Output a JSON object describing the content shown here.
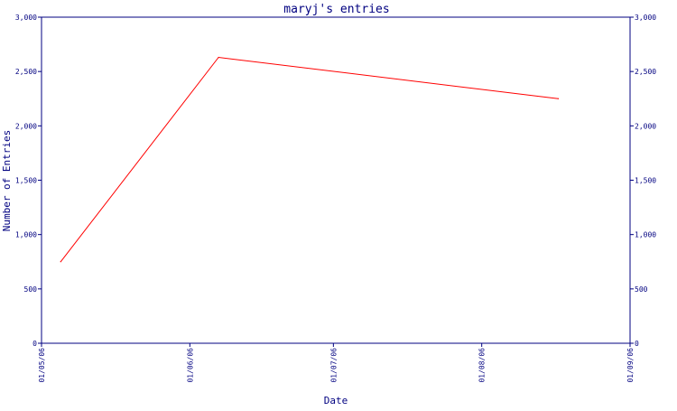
{
  "chart_data": {
    "type": "line",
    "title": "maryj's entries",
    "xlabel": "Date",
    "ylabel": "Number of Entries",
    "ylim": [
      0,
      3000
    ],
    "y_ticks": [
      0,
      500,
      1000,
      1500,
      2000,
      2500,
      3000
    ],
    "y_tick_labels": [
      "0",
      "500",
      "1,000",
      "1,500",
      "2,000",
      "2,500",
      "3,000"
    ],
    "x_ticks": [
      "2006-05-01",
      "2006-06-01",
      "2006-07-01",
      "2006-08-01",
      "2006-09-01"
    ],
    "x_tick_labels": [
      "01/05/06",
      "01/06/06",
      "01/07/06",
      "01/08/06",
      "01/09/06"
    ],
    "xlim": [
      "2006-05-01",
      "2006-09-01"
    ],
    "grid": false,
    "right_axis": true,
    "series": [
      {
        "color": "#ff0000",
        "points": [
          {
            "x": "2006-05-05",
            "y": 750
          },
          {
            "x": "2006-06-07",
            "y": 2630
          },
          {
            "x": "2006-08-17",
            "y": 2250
          }
        ]
      }
    ],
    "colors": {
      "axis": "#000080",
      "line": "#ff0000",
      "background": "#ffffff"
    }
  }
}
